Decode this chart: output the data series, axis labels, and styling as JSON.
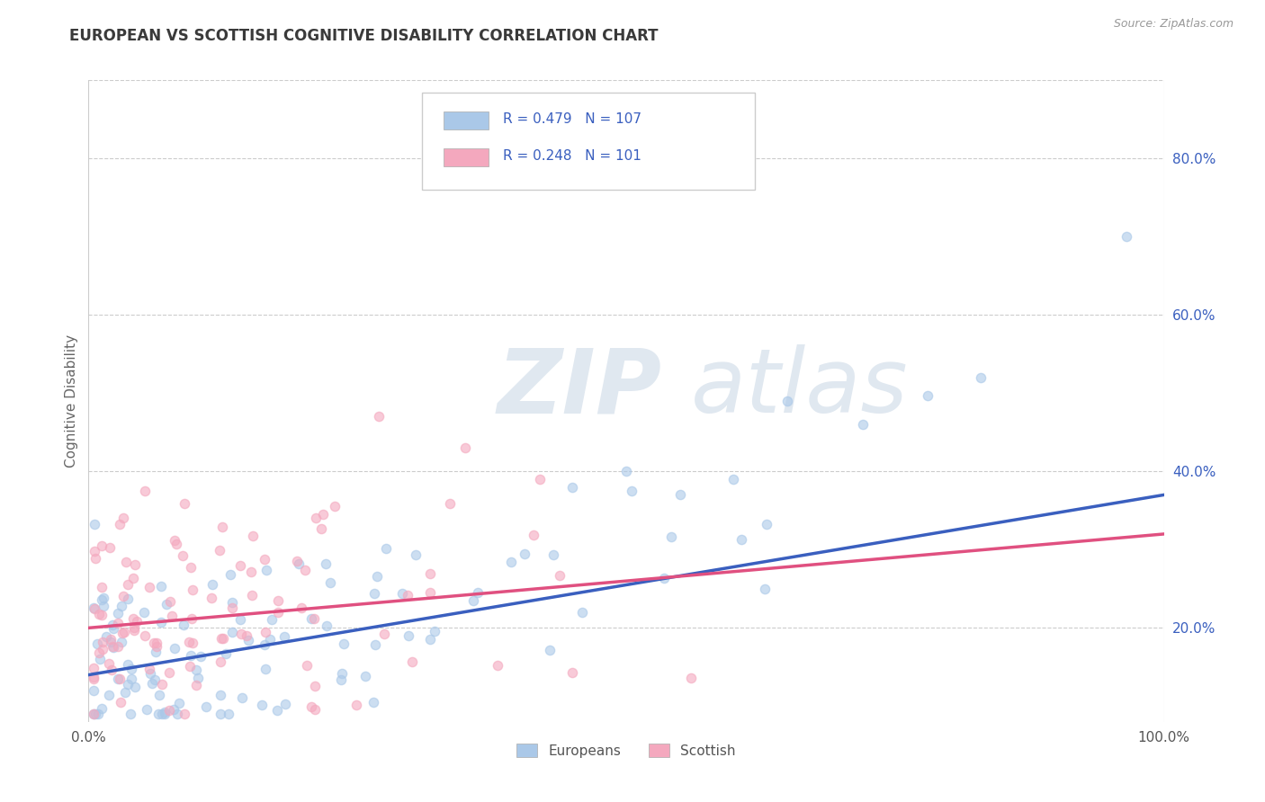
{
  "title": "EUROPEAN VS SCOTTISH COGNITIVE DISABILITY CORRELATION CHART",
  "source": "Source: ZipAtlas.com",
  "ylabel": "Cognitive Disability",
  "xlim": [
    0.0,
    1.0
  ],
  "ylim": [
    0.08,
    0.9
  ],
  "ytick_labels": [
    "20.0%",
    "40.0%",
    "60.0%",
    "80.0%"
  ],
  "ytick_values": [
    0.2,
    0.4,
    0.6,
    0.8
  ],
  "xtick_labels": [
    "0.0%",
    "100.0%"
  ],
  "xtick_values": [
    0.0,
    1.0
  ],
  "blue_scatter_color": "#aac8e8",
  "pink_scatter_color": "#f4a8be",
  "blue_line_color": "#3a5fbf",
  "pink_line_color": "#e05080",
  "blue_R": 0.479,
  "blue_N": 107,
  "pink_R": 0.248,
  "pink_N": 101,
  "grid_color": "#cccccc",
  "background_color": "#ffffff",
  "title_color": "#3a3a3a",
  "axis_label_color": "#666666",
  "source_color": "#999999",
  "blue_line_start_y": 0.14,
  "blue_line_end_y": 0.37,
  "pink_line_start_y": 0.2,
  "pink_line_end_y": 0.32
}
